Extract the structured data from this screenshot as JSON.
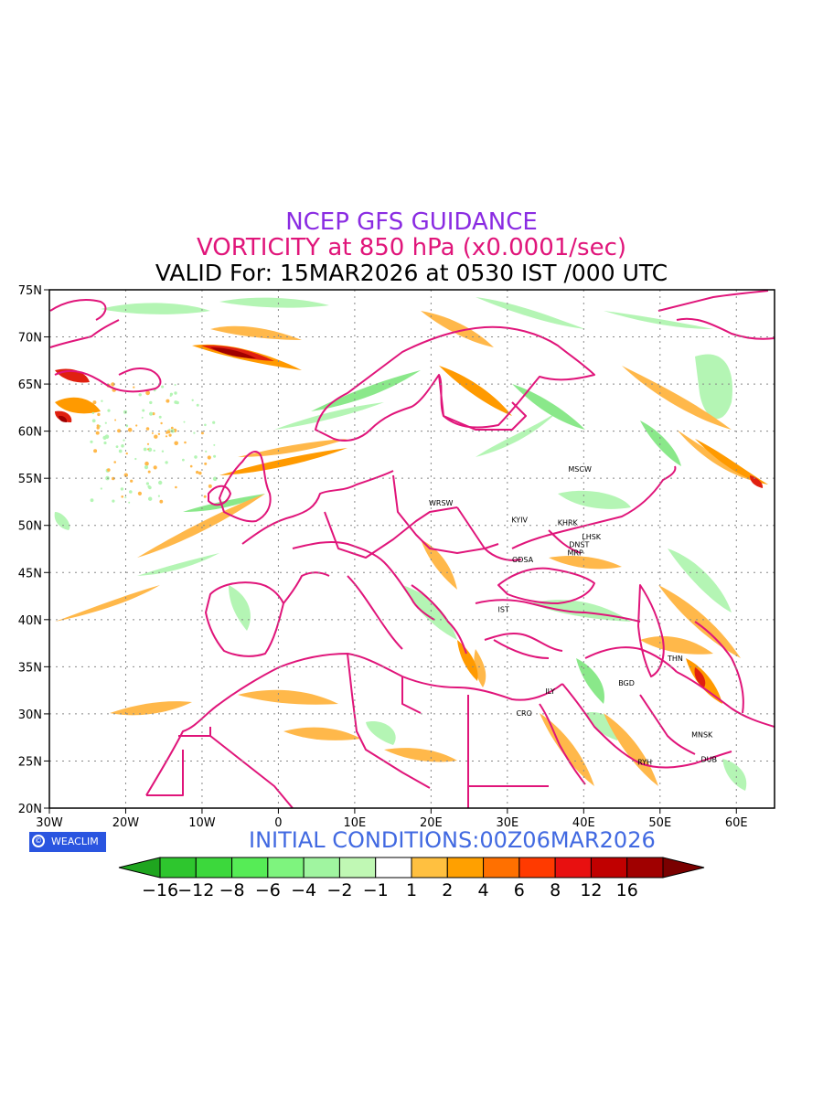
{
  "titles": {
    "line1": "NCEP GFS GUIDANCE",
    "line2": "VORTICITY at 850 hPa (x0.0001/sec)",
    "line3": "VALID For: 15MAR2026 at 0530 IST /000 UTC"
  },
  "initial_conditions": "INITIAL CONDITIONS:00Z06MAR2026",
  "logo_text": "WEACLIM",
  "map": {
    "lon_range": [
      -30,
      65
    ],
    "lat_range": [
      20,
      75
    ],
    "x_ticks": [
      {
        "lon": -30,
        "label": "30W"
      },
      {
        "lon": -20,
        "label": "20W"
      },
      {
        "lon": -10,
        "label": "10W"
      },
      {
        "lon": 0,
        "label": "0"
      },
      {
        "lon": 10,
        "label": "10E"
      },
      {
        "lon": 20,
        "label": "20E"
      },
      {
        "lon": 30,
        "label": "30E"
      },
      {
        "lon": 40,
        "label": "40E"
      },
      {
        "lon": 50,
        "label": "50E"
      },
      {
        "lon": 60,
        "label": "60E"
      }
    ],
    "y_ticks": [
      {
        "lat": 20,
        "label": "20N"
      },
      {
        "lat": 25,
        "label": "25N"
      },
      {
        "lat": 30,
        "label": "30N"
      },
      {
        "lat": 35,
        "label": "35N"
      },
      {
        "lat": 40,
        "label": "40N"
      },
      {
        "lat": 45,
        "label": "45N"
      },
      {
        "lat": 50,
        "label": "50N"
      },
      {
        "lat": 55,
        "label": "55N"
      },
      {
        "lat": 60,
        "label": "60N"
      },
      {
        "lat": 65,
        "label": "65N"
      },
      {
        "lat": 70,
        "label": "70N"
      },
      {
        "lat": 75,
        "label": "75N"
      }
    ],
    "cities": [
      {
        "name": "MSCW",
        "lon": 39.5,
        "lat": 56
      },
      {
        "name": "WRSW",
        "lon": 21.3,
        "lat": 52.4
      },
      {
        "name": "KYIV",
        "lon": 31.6,
        "lat": 50.6
      },
      {
        "name": "KHRK",
        "lon": 37.9,
        "lat": 50.3
      },
      {
        "name": "LHSK",
        "lon": 41.0,
        "lat": 48.8
      },
      {
        "name": "DNST",
        "lon": 39.4,
        "lat": 48.0
      },
      {
        "name": "MRP",
        "lon": 38.9,
        "lat": 47.1
      },
      {
        "name": "ODSA",
        "lon": 32.0,
        "lat": 46.4
      },
      {
        "name": "IST",
        "lon": 29.5,
        "lat": 41.1
      },
      {
        "name": "THN",
        "lon": 52.0,
        "lat": 35.9
      },
      {
        "name": "BGD",
        "lon": 45.6,
        "lat": 33.3
      },
      {
        "name": "ILY",
        "lon": 35.6,
        "lat": 32.4
      },
      {
        "name": "CRO",
        "lon": 32.2,
        "lat": 30.1
      },
      {
        "name": "MNSK",
        "lon": 55.5,
        "lat": 27.8
      },
      {
        "name": "DUB",
        "lon": 56.4,
        "lat": 25.2
      },
      {
        "name": "RYH",
        "lon": 48.0,
        "lat": 24.9
      }
    ]
  },
  "colorbar": {
    "colors": [
      "#1fa51f",
      "#2ec62e",
      "#3cd83c",
      "#56ec56",
      "#7ef47e",
      "#a0f5a0",
      "#c0f8b4",
      "#ffffff",
      "#ffc040",
      "#ffa000",
      "#ff7000",
      "#ff3a00",
      "#e81010",
      "#c00000",
      "#a00000",
      "#7a0000"
    ],
    "labels": [
      "−16",
      "−12",
      "−8",
      "−6",
      "−4",
      "−2",
      "−1",
      "1",
      "2",
      "4",
      "6",
      "8",
      "12",
      "16"
    ]
  },
  "shading_colors": {
    "green_light": "#b4f5b4",
    "green_mid": "#8ae88a",
    "orange_light": "#ffb84a",
    "orange": "#ff9a00",
    "red": "#e02010",
    "dark_red": "#a00000",
    "boundary": "#e0157a"
  }
}
